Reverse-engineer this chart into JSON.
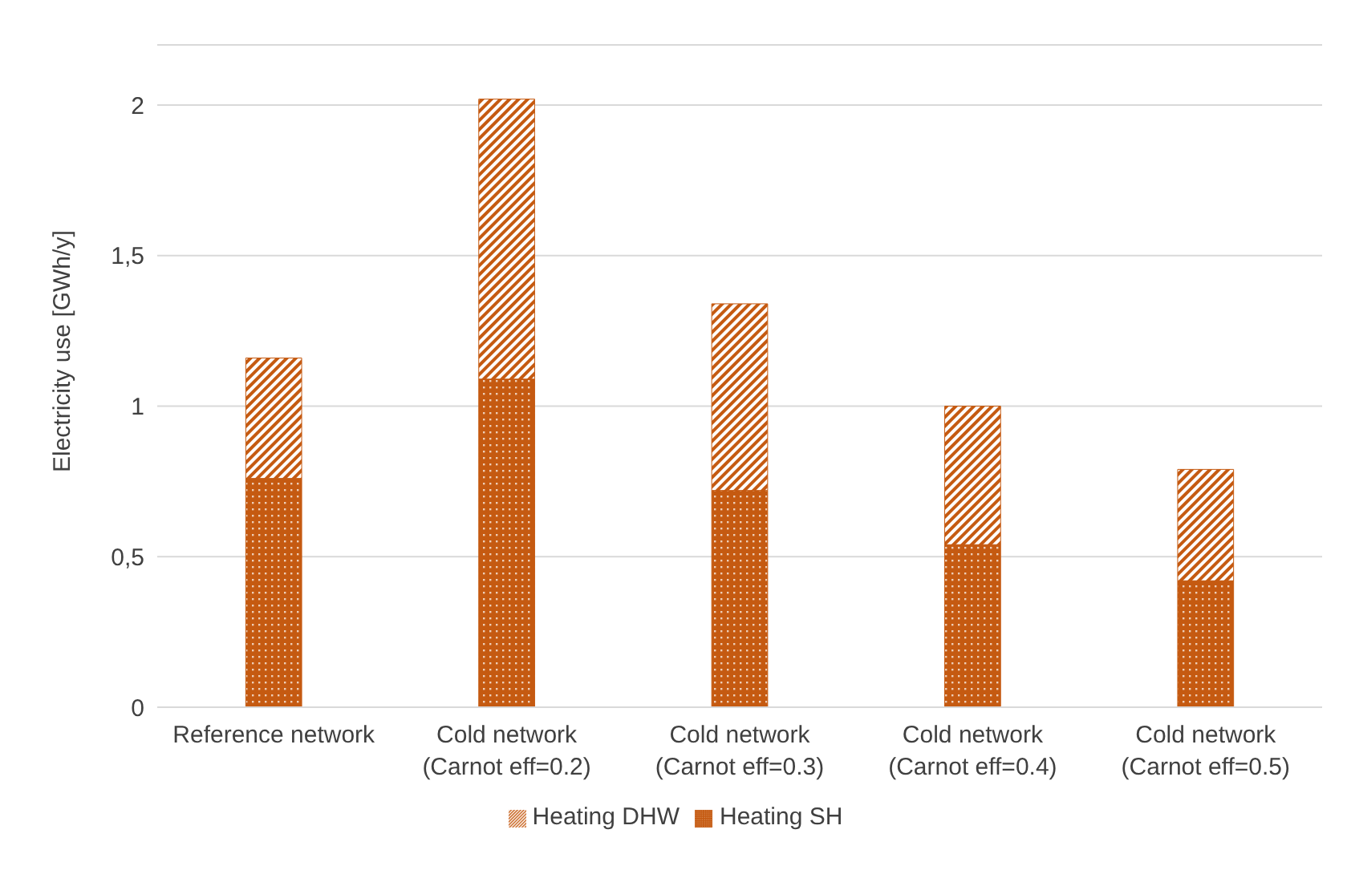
{
  "chart_data": {
    "type": "bar",
    "stacked": true,
    "ylabel": "Electricity use [GWh/y]",
    "categories": [
      "Reference network",
      "Cold network\n(Carnot eff=0.2)",
      "Cold network\n(Carnot eff=0.3)",
      "Cold network\n(Carnot eff=0.4)",
      "Cold network\n(Carnot eff=0.5)"
    ],
    "series": [
      {
        "name": "Heating SH",
        "color": "#c55a11",
        "values": [
          0.76,
          1.09,
          0.72,
          0.54,
          0.42
        ]
      },
      {
        "name": "Heating DHW",
        "color": "#c55a11",
        "values": [
          0.4,
          0.93,
          0.62,
          0.46,
          0.37
        ]
      }
    ],
    "ylim": [
      0,
      2.2
    ],
    "yticks": [
      0,
      {
        "value": 0.5,
        "label": "0,5"
      },
      1,
      {
        "value": 1.5,
        "label": "1,5"
      },
      2
    ],
    "grid": "y",
    "legend": "bottom"
  }
}
